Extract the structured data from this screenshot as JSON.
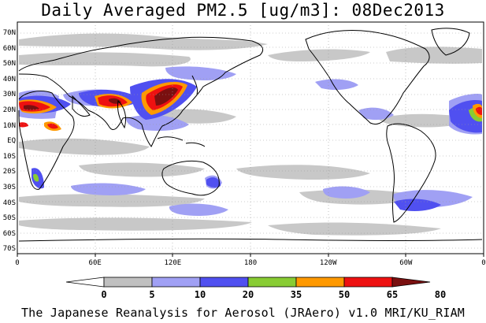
{
  "title": "Daily Averaged PM2.5 [ug/m3]: 08Dec2013",
  "footer": "The Japanese Reanalysis for Aerosol (JRAero) v1.0 MRI/KU_RIAM",
  "lat_labels": [
    "70N",
    "60N",
    "50N",
    "40N",
    "30N",
    "20N",
    "10N",
    "EQ",
    "10S",
    "20S",
    "30S",
    "40S",
    "50S",
    "60S",
    "70S"
  ],
  "lon_labels": [
    "0",
    "60E",
    "120E",
    "180",
    "120W",
    "60W",
    "0"
  ],
  "colorbar": {
    "levels": [
      "0",
      "5",
      "10",
      "20",
      "35",
      "50",
      "65",
      "80"
    ],
    "colors": [
      "#ffffff",
      "#c0c0c0",
      "#a0a0f4",
      "#5050f0",
      "#88cc33",
      "#ff9900",
      "#ee1111",
      "#7a1010"
    ]
  }
}
